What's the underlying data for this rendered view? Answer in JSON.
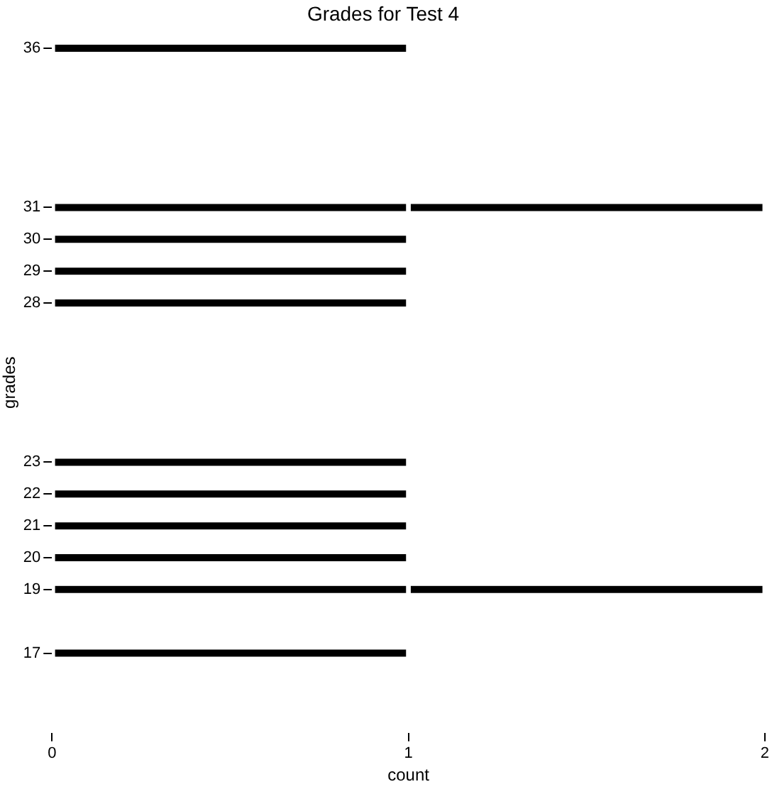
{
  "chart_data": {
    "type": "bar",
    "orientation": "horizontal",
    "stacked": true,
    "title": "Grades for Test 4",
    "xlabel": "count",
    "ylabel": "grades",
    "categories": [
      "36",
      null,
      null,
      null,
      null,
      "31",
      "30",
      "29",
      "28",
      null,
      null,
      null,
      null,
      "23",
      "22",
      "21",
      "20",
      "19",
      null,
      "17",
      null,
      null
    ],
    "series": [
      {
        "color": "#000000",
        "values": [
          1,
          null,
          null,
          null,
          null,
          1,
          1,
          1,
          1,
          null,
          null,
          null,
          null,
          1,
          1,
          1,
          1,
          1,
          null,
          1,
          null,
          null
        ]
      },
      {
        "color": "#000000",
        "values": [
          null,
          null,
          null,
          null,
          null,
          1,
          null,
          null,
          null,
          null,
          null,
          null,
          null,
          null,
          null,
          null,
          null,
          1,
          null,
          null,
          null,
          null
        ]
      }
    ],
    "xlim": [
      0,
      2
    ],
    "xticks": [
      0,
      1,
      2
    ],
    "grid": false,
    "legend": false
  }
}
